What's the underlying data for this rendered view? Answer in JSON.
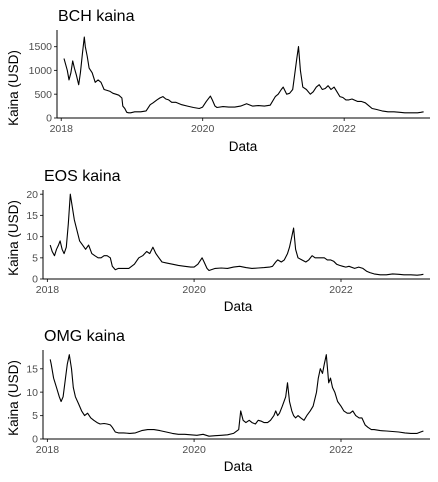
{
  "chart_data": [
    {
      "type": "line",
      "title": "BCH kaina",
      "xlabel": "Data",
      "ylabel": "Kaina (USD)",
      "xlim": [
        "2017-12-10",
        "2023-03-20"
      ],
      "ylim": [
        0,
        1850
      ],
      "xticks": [
        "2018-01-01",
        "2020-01-01",
        "2022-01-01"
      ],
      "xtick_labels": [
        "2018",
        "2020",
        "2022"
      ],
      "yticks": [
        0,
        500,
        1000,
        1500
      ],
      "ytick_labels": [
        "0",
        "500",
        "1000",
        "1500"
      ],
      "grid": false,
      "series": [
        {
          "color": "#000000",
          "x": [
            "2018-01-15",
            "2018-02-01",
            "2018-02-10",
            "2018-02-20",
            "2018-03-01",
            "2018-03-10",
            "2018-03-20",
            "2018-04-01",
            "2018-04-10",
            "2018-04-20",
            "2018-04-30",
            "2018-05-05",
            "2018-05-15",
            "2018-05-25",
            "2018-06-10",
            "2018-06-25",
            "2018-07-10",
            "2018-07-25",
            "2018-08-10",
            "2018-08-25",
            "2018-09-10",
            "2018-09-25",
            "2018-10-10",
            "2018-10-25",
            "2018-11-10",
            "2018-11-15",
            "2018-11-25",
            "2018-12-05",
            "2018-12-15",
            "2018-12-25",
            "2019-01-15",
            "2019-02-15",
            "2019-03-15",
            "2019-04-05",
            "2019-04-20",
            "2019-05-10",
            "2019-05-25",
            "2019-06-10",
            "2019-06-25",
            "2019-07-10",
            "2019-07-25",
            "2019-08-15",
            "2019-09-15",
            "2019-10-15",
            "2019-11-15",
            "2019-12-15",
            "2020-01-01",
            "2020-01-20",
            "2020-02-10",
            "2020-02-20",
            "2020-03-05",
            "2020-03-15",
            "2020-04-15",
            "2020-05-15",
            "2020-06-15",
            "2020-07-15",
            "2020-08-15",
            "2020-09-15",
            "2020-10-15",
            "2020-11-15",
            "2020-12-15",
            "2021-01-10",
            "2021-01-25",
            "2021-02-10",
            "2021-02-20",
            "2021-03-10",
            "2021-03-25",
            "2021-04-10",
            "2021-04-20",
            "2021-05-01",
            "2021-05-10",
            "2021-05-20",
            "2021-06-01",
            "2021-06-20",
            "2021-07-10",
            "2021-07-25",
            "2021-08-10",
            "2021-08-25",
            "2021-09-10",
            "2021-09-25",
            "2021-10-10",
            "2021-10-25",
            "2021-11-10",
            "2021-11-25",
            "2021-12-10",
            "2021-12-25",
            "2022-01-10",
            "2022-01-25",
            "2022-02-10",
            "2022-03-10",
            "2022-03-30",
            "2022-04-20",
            "2022-05-10",
            "2022-05-25",
            "2022-06-15",
            "2022-07-15",
            "2022-08-15",
            "2022-09-15",
            "2022-10-15",
            "2022-11-10",
            "2022-11-20",
            "2022-12-15",
            "2023-01-15",
            "2023-02-01",
            "2023-02-15"
          ],
          "values": [
            1250,
            1000,
            800,
            950,
            1200,
            1050,
            900,
            700,
            950,
            1350,
            1700,
            1500,
            1300,
            1050,
            950,
            750,
            800,
            750,
            600,
            580,
            560,
            520,
            500,
            480,
            420,
            250,
            200,
            120,
            110,
            110,
            130,
            130,
            150,
            280,
            320,
            380,
            420,
            450,
            400,
            380,
            330,
            330,
            280,
            250,
            220,
            200,
            230,
            350,
            460,
            380,
            250,
            220,
            240,
            230,
            230,
            250,
            300,
            250,
            260,
            250,
            270,
            450,
            500,
            600,
            650,
            500,
            520,
            600,
            900,
            1250,
            1500,
            1000,
            650,
            600,
            500,
            550,
            650,
            700,
            600,
            620,
            680,
            600,
            650,
            550,
            450,
            430,
            380,
            380,
            400,
            350,
            350,
            320,
            250,
            200,
            180,
            150,
            130,
            130,
            120,
            110,
            110,
            110,
            110,
            120,
            130
          ]
        }
      ]
    },
    {
      "type": "line",
      "title": "EOS kaina",
      "xlabel": "Data",
      "ylabel": "Kaina (USD)",
      "xlim": [
        "2017-12-10",
        "2023-03-20"
      ],
      "ylim": [
        0,
        21
      ],
      "xticks": [
        "2018-01-01",
        "2020-01-01",
        "2022-01-01"
      ],
      "xtick_labels": [
        "2018",
        "2020",
        "2022"
      ],
      "yticks": [
        0,
        5,
        10,
        15,
        20
      ],
      "ytick_labels": [
        "0",
        "5",
        "10",
        "15",
        "20"
      ],
      "grid": false,
      "series": [
        {
          "color": "#000000",
          "x": [
            "2018-01-15",
            "2018-01-25",
            "2018-02-05",
            "2018-02-15",
            "2018-02-25",
            "2018-03-05",
            "2018-03-15",
            "2018-03-25",
            "2018-04-05",
            "2018-04-15",
            "2018-04-25",
            "2018-05-05",
            "2018-05-15",
            "2018-05-25",
            "2018-06-10",
            "2018-06-25",
            "2018-07-10",
            "2018-07-25",
            "2018-08-10",
            "2018-08-25",
            "2018-09-10",
            "2018-09-25",
            "2018-10-10",
            "2018-10-25",
            "2018-11-10",
            "2018-11-20",
            "2018-12-05",
            "2018-12-20",
            "2019-01-10",
            "2019-02-10",
            "2019-03-10",
            "2019-04-01",
            "2019-04-20",
            "2019-05-10",
            "2019-05-25",
            "2019-06-10",
            "2019-06-25",
            "2019-07-10",
            "2019-07-25",
            "2019-08-15",
            "2019-09-15",
            "2019-10-15",
            "2019-11-15",
            "2019-12-15",
            "2020-01-01",
            "2020-01-20",
            "2020-02-10",
            "2020-02-20",
            "2020-03-05",
            "2020-03-15",
            "2020-04-15",
            "2020-05-15",
            "2020-06-15",
            "2020-07-15",
            "2020-08-15",
            "2020-09-15",
            "2020-10-15",
            "2020-11-15",
            "2020-12-15",
            "2021-01-10",
            "2021-01-25",
            "2021-02-10",
            "2021-02-20",
            "2021-03-10",
            "2021-03-25",
            "2021-04-10",
            "2021-04-20",
            "2021-05-01",
            "2021-05-10",
            "2021-05-20",
            "2021-06-01",
            "2021-06-20",
            "2021-07-10",
            "2021-07-25",
            "2021-08-10",
            "2021-08-25",
            "2021-09-10",
            "2021-09-25",
            "2021-10-10",
            "2021-10-25",
            "2021-11-10",
            "2021-11-25",
            "2021-12-10",
            "2021-12-25",
            "2022-01-10",
            "2022-01-25",
            "2022-02-10",
            "2022-03-10",
            "2022-03-30",
            "2022-04-20",
            "2022-05-10",
            "2022-05-25",
            "2022-06-15",
            "2022-07-15",
            "2022-08-15",
            "2022-09-15",
            "2022-10-15",
            "2022-11-10",
            "2022-11-20",
            "2022-12-15",
            "2023-01-15",
            "2023-02-01",
            "2023-02-15"
          ],
          "values": [
            8,
            6.5,
            5.5,
            7,
            8,
            9,
            7,
            6,
            7.5,
            13,
            20,
            17,
            14,
            12,
            9,
            8,
            7,
            8,
            6,
            5.5,
            5,
            5,
            5.5,
            5.5,
            5,
            3,
            2.2,
            2.5,
            2.5,
            2.5,
            3.5,
            5,
            5.5,
            6.5,
            6,
            7.5,
            6,
            5,
            4,
            3.8,
            3.5,
            3.2,
            3,
            2.8,
            2.8,
            3.5,
            5,
            4,
            2.5,
            2,
            2.5,
            2.6,
            2.5,
            2.8,
            3,
            2.7,
            2.5,
            2.6,
            2.7,
            2.8,
            3,
            4,
            4.5,
            4,
            4.5,
            6,
            7.5,
            10,
            12,
            7,
            5,
            4.5,
            4,
            4.5,
            5.5,
            5,
            5,
            5,
            5,
            4.5,
            4.5,
            4.2,
            3.5,
            3.2,
            3,
            2.8,
            3,
            2.5,
            2.8,
            2.5,
            1.8,
            1.5,
            1.2,
            1,
            1,
            1.2,
            1.1,
            1,
            1,
            1,
            0.9,
            1,
            1.1
          ]
        }
      ]
    },
    {
      "type": "line",
      "title": "OMG kaina",
      "xlabel": "Data",
      "ylabel": "Kaina (USD)",
      "xlim": [
        "2017-12-10",
        "2023-03-20"
      ],
      "ylim": [
        0,
        19
      ],
      "xticks": [
        "2018-01-01",
        "2020-01-01",
        "2022-01-01"
      ],
      "xtick_labels": [
        "2018",
        "2020",
        "2022"
      ],
      "yticks": [
        0,
        5,
        10,
        15
      ],
      "ytick_labels": [
        "0",
        "5",
        "10",
        "15"
      ],
      "grid": false,
      "series": [
        {
          "color": "#000000",
          "x": [
            "2018-01-15",
            "2018-01-20",
            "2018-02-01",
            "2018-02-15",
            "2018-03-01",
            "2018-03-10",
            "2018-03-20",
            "2018-04-01",
            "2018-04-10",
            "2018-04-20",
            "2018-05-01",
            "2018-05-10",
            "2018-05-20",
            "2018-06-05",
            "2018-06-20",
            "2018-07-05",
            "2018-07-20",
            "2018-08-05",
            "2018-08-20",
            "2018-09-05",
            "2018-09-20",
            "2018-10-10",
            "2018-10-25",
            "2018-11-10",
            "2018-11-20",
            "2018-12-05",
            "2018-12-20",
            "2019-01-15",
            "2019-02-15",
            "2019-03-15",
            "2019-04-15",
            "2019-05-15",
            "2019-06-15",
            "2019-07-15",
            "2019-08-15",
            "2019-09-15",
            "2019-10-15",
            "2019-11-15",
            "2019-12-15",
            "2020-01-15",
            "2020-02-15",
            "2020-03-15",
            "2020-04-15",
            "2020-05-15",
            "2020-06-15",
            "2020-07-15",
            "2020-08-10",
            "2020-08-20",
            "2020-09-01",
            "2020-09-15",
            "2020-10-01",
            "2020-10-15",
            "2020-11-01",
            "2020-11-15",
            "2020-12-01",
            "2020-12-15",
            "2021-01-01",
            "2021-01-15",
            "2021-02-01",
            "2021-02-10",
            "2021-02-20",
            "2021-03-01",
            "2021-03-15",
            "2021-04-01",
            "2021-04-10",
            "2021-04-20",
            "2021-05-01",
            "2021-05-10",
            "2021-05-20",
            "2021-06-01",
            "2021-06-15",
            "2021-07-01",
            "2021-07-15",
            "2021-08-01",
            "2021-08-15",
            "2021-09-01",
            "2021-09-10",
            "2021-09-20",
            "2021-10-01",
            "2021-10-10",
            "2021-10-20",
            "2021-11-01",
            "2021-11-10",
            "2021-11-20",
            "2021-12-01",
            "2021-12-15",
            "2022-01-01",
            "2022-01-15",
            "2022-02-01",
            "2022-02-15",
            "2022-03-01",
            "2022-03-15",
            "2022-04-01",
            "2022-04-15",
            "2022-05-01",
            "2022-05-15",
            "2022-06-01",
            "2022-06-15",
            "2022-07-15",
            "2022-08-15",
            "2022-09-15",
            "2022-10-15",
            "2022-11-15",
            "2022-12-15",
            "2023-01-15",
            "2023-02-01",
            "2023-02-15"
          ],
          "values": [
            17,
            16,
            13,
            11,
            9,
            8,
            9,
            13,
            16,
            18,
            15,
            11,
            9,
            7.5,
            6,
            5,
            5.5,
            4.5,
            4,
            3.5,
            3.2,
            3.3,
            3.2,
            3,
            2.5,
            1.5,
            1.3,
            1.3,
            1.2,
            1.3,
            1.8,
            2,
            2,
            1.8,
            1.5,
            1.2,
            1,
            1,
            0.9,
            0.8,
            1,
            0.6,
            0.7,
            0.8,
            0.9,
            1.2,
            2,
            6,
            4,
            3.5,
            4,
            3.5,
            3.2,
            4,
            3.8,
            3.5,
            3.5,
            4,
            5,
            6,
            5,
            5.5,
            7,
            9,
            12,
            8,
            6,
            5,
            4.5,
            5,
            4.5,
            4,
            5,
            6,
            7,
            10,
            13,
            15,
            14,
            16,
            18,
            12,
            13,
            11,
            10,
            8,
            7,
            6,
            5.5,
            5.5,
            6,
            5,
            4.5,
            4.5,
            3,
            2.5,
            2,
            2,
            1.8,
            1.7,
            1.6,
            1.5,
            1.3,
            1.2,
            1.2,
            1.5,
            1.7
          ]
        }
      ]
    }
  ]
}
